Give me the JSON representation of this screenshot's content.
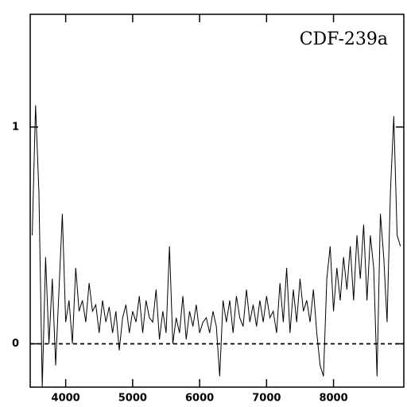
{
  "chart_data": {
    "type": "line",
    "annotation": "CDF-239a",
    "x": [
      3500,
      3550,
      3600,
      3650,
      3700,
      3750,
      3800,
      3850,
      3900,
      3950,
      4000,
      4050,
      4100,
      4150,
      4200,
      4250,
      4300,
      4350,
      4400,
      4450,
      4500,
      4550,
      4600,
      4650,
      4700,
      4750,
      4800,
      4850,
      4900,
      4950,
      5000,
      5050,
      5100,
      5150,
      5200,
      5250,
      5300,
      5350,
      5400,
      5450,
      5500,
      5550,
      5600,
      5650,
      5700,
      5750,
      5800,
      5850,
      5900,
      5950,
      6000,
      6050,
      6100,
      6150,
      6200,
      6250,
      6300,
      6350,
      6400,
      6450,
      6500,
      6550,
      6600,
      6650,
      6700,
      6750,
      6800,
      6850,
      6900,
      6950,
      7000,
      7050,
      7100,
      7150,
      7200,
      7250,
      7300,
      7350,
      7400,
      7450,
      7500,
      7550,
      7600,
      7650,
      7700,
      7750,
      7800,
      7850,
      7900,
      7950,
      8000,
      8050,
      8100,
      8150,
      8200,
      8250,
      8300,
      8350,
      8400,
      8450,
      8500,
      8550,
      8600,
      8650,
      8700,
      8750,
      8800,
      8850,
      8900,
      8950,
      9000
    ],
    "values": [
      0.5,
      1.1,
      0.7,
      -0.2,
      0.4,
      0.0,
      0.3,
      -0.1,
      0.25,
      0.6,
      0.1,
      0.2,
      0.0,
      0.35,
      0.15,
      0.2,
      0.1,
      0.28,
      0.15,
      0.18,
      0.05,
      0.2,
      0.1,
      0.17,
      0.05,
      0.15,
      -0.03,
      0.12,
      0.18,
      0.05,
      0.15,
      0.1,
      0.22,
      0.05,
      0.2,
      0.12,
      0.1,
      0.25,
      0.02,
      0.15,
      0.05,
      0.45,
      0.0,
      0.12,
      0.05,
      0.22,
      0.02,
      0.15,
      0.08,
      0.18,
      0.05,
      0.1,
      0.12,
      0.05,
      0.15,
      0.08,
      -0.15,
      0.2,
      0.1,
      0.2,
      0.05,
      0.22,
      0.12,
      0.08,
      0.25,
      0.1,
      0.18,
      0.08,
      0.2,
      0.1,
      0.22,
      0.12,
      0.15,
      0.05,
      0.28,
      0.1,
      0.35,
      0.05,
      0.25,
      0.1,
      0.3,
      0.15,
      0.2,
      0.1,
      0.25,
      0.05,
      -0.1,
      -0.15,
      0.3,
      0.45,
      0.15,
      0.35,
      0.2,
      0.4,
      0.25,
      0.45,
      0.2,
      0.5,
      0.3,
      0.55,
      0.2,
      0.5,
      0.35,
      -0.15,
      0.6,
      0.4,
      0.1,
      0.7,
      1.05,
      0.5,
      0.45
    ],
    "color": "#000000",
    "xlim": [
      3470,
      9050
    ],
    "xticks": [
      4000,
      5000,
      6000,
      7000,
      8000
    ],
    "ylim": [
      -0.2,
      1.52
    ],
    "yticks": [
      0,
      1
    ],
    "zero_line": true
  }
}
